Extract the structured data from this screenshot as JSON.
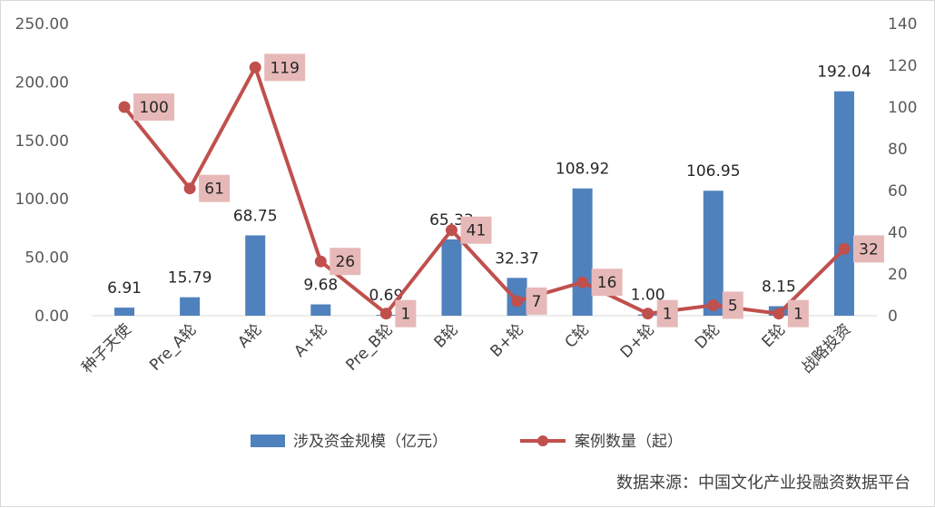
{
  "chart_data": {
    "type": "bar",
    "categories": [
      "种子天使",
      "Pre_A轮",
      "A轮",
      "A+轮",
      "Pre_B轮",
      "B轮",
      "B+轮",
      "C轮",
      "D+轮",
      "D轮",
      "E轮",
      "战略投资"
    ],
    "series": [
      {
        "name": "涉及资金规模（亿元）",
        "type": "bar",
        "axis": "left",
        "color": "#4f81bd",
        "values": [
          6.91,
          15.79,
          68.75,
          9.68,
          0.69,
          65.33,
          32.37,
          108.92,
          1.0,
          106.95,
          8.15,
          192.04
        ],
        "labels": [
          "6.91",
          "15.79",
          "68.75",
          "9.68",
          "0.69",
          "65.33",
          "32.37",
          "108.92",
          "1.00",
          "106.95",
          "8.15",
          "192.04"
        ]
      },
      {
        "name": "案例数量（起）",
        "type": "line",
        "axis": "right",
        "color": "#c0504d",
        "label_bg": "#e6b9b8",
        "values": [
          100,
          61,
          119,
          26,
          1,
          41,
          7,
          16,
          1,
          5,
          1,
          32
        ],
        "labels": [
          "100",
          "61",
          "119",
          "26",
          "1",
          "41",
          "7",
          "16",
          "1",
          "5",
          "1",
          "32"
        ]
      }
    ],
    "y_left": {
      "ylim": [
        0,
        250
      ],
      "ticks": [
        "0.00",
        "50.00",
        "100.00",
        "150.00",
        "200.00",
        "250.00"
      ]
    },
    "y_right": {
      "ylim": [
        0,
        140
      ],
      "ticks": [
        "0",
        "20",
        "40",
        "60",
        "80",
        "100",
        "120",
        "140"
      ]
    },
    "grid": false,
    "legend_position": "bottom",
    "source": "数据来源：中国文化产业投融资数据平台"
  }
}
